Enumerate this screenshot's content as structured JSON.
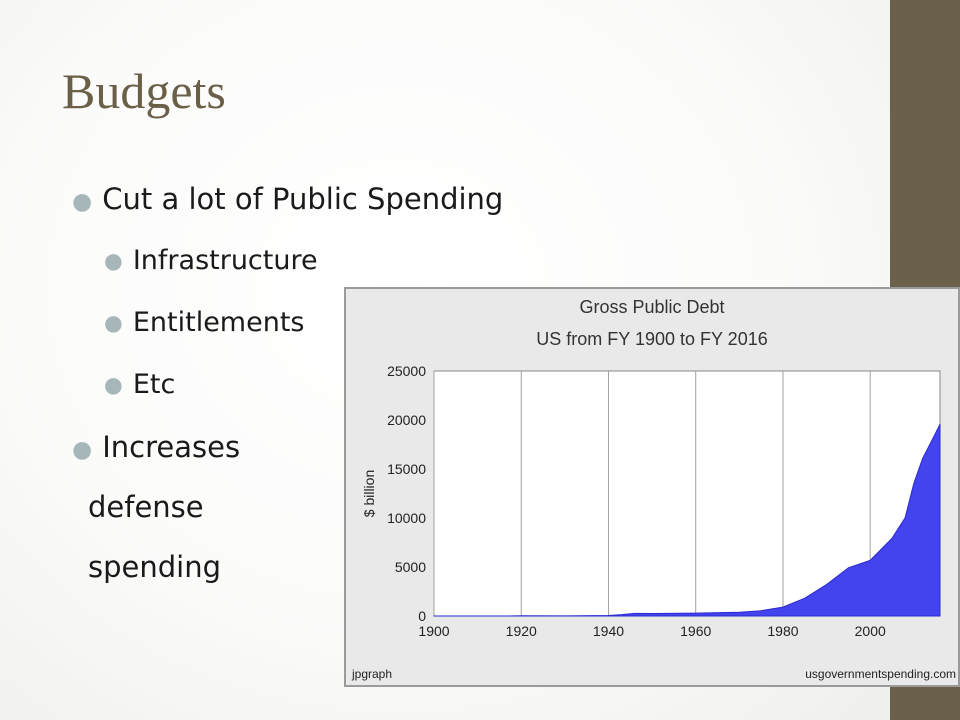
{
  "slide": {
    "title": "Budgets",
    "bullets": [
      {
        "text": "Cut a lot of Public Spending",
        "level": 1
      },
      {
        "text": "Infrastructure",
        "level": 2
      },
      {
        "text": "Entitlements",
        "level": 2
      },
      {
        "text": "Etc",
        "level": 2
      },
      {
        "text": "Increases",
        "level": 1
      },
      {
        "text": "defense",
        "level": 1,
        "no_bullet": true
      },
      {
        "text": "spending",
        "level": 1,
        "no_bullet": true
      }
    ],
    "colors": {
      "band": "#6b614a",
      "title": "#6b5f47",
      "bullet_dot": "#a7b6b8",
      "area_fill": "#4444ee"
    }
  },
  "chart_data": {
    "type": "area",
    "title": "Gross Public Debt",
    "subtitle": "US from FY 1900 to FY 2016",
    "ylabel": "$ billion",
    "xlabel": "",
    "xlim": [
      1900,
      2016
    ],
    "ylim": [
      0,
      25000
    ],
    "x_ticks": [
      1900,
      1920,
      1940,
      1960,
      1980,
      2000
    ],
    "y_ticks": [
      0,
      5000,
      10000,
      15000,
      20000,
      25000
    ],
    "grid": true,
    "footer_left": "jpgraph",
    "footer_right": "usgovernmentspending.com",
    "series": [
      {
        "x": [
          1900,
          1910,
          1917,
          1920,
          1930,
          1940,
          1943,
          1946,
          1950,
          1960,
          1970,
          1975,
          1980,
          1985,
          1990,
          1995,
          2000,
          2005,
          2008,
          2010,
          2012,
          2014,
          2016
        ],
        "values": [
          2,
          3,
          5,
          26,
          16,
          51,
          137,
          271,
          257,
          291,
          381,
          542,
          909,
          1817,
          3206,
          4921,
          5674,
          7933,
          10025,
          13529,
          16066,
          17794,
          19573
        ]
      }
    ]
  }
}
